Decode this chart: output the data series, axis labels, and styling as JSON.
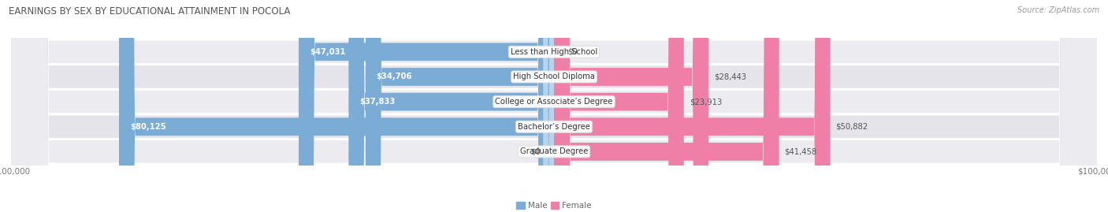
{
  "title": "EARNINGS BY SEX BY EDUCATIONAL ATTAINMENT IN POCOLA",
  "source": "Source: ZipAtlas.com",
  "categories": [
    "Less than High School",
    "High School Diploma",
    "College or Associate’s Degree",
    "Bachelor’s Degree",
    "Graduate Degree"
  ],
  "male_values": [
    47031,
    34706,
    37833,
    80125,
    0
  ],
  "female_values": [
    0,
    28443,
    23913,
    50882,
    41458
  ],
  "male_color": "#7aacd6",
  "male_color_light": "#b8d4ea",
  "female_color": "#f07fa8",
  "female_color_light": "#f5b8ce",
  "row_bg": "#ececf0",
  "row_bg2": "#e4e4ea",
  "axis_max": 100000,
  "title_color": "#555555",
  "source_color": "#999999",
  "label_color": "#555555",
  "white_label_color": "#ffffff"
}
